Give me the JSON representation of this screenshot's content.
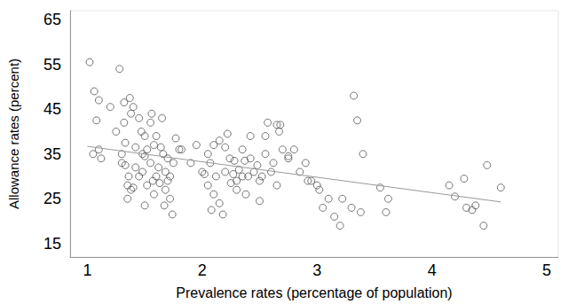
{
  "chart_data": {
    "type": "scatter",
    "x_label": "Prevalence rates (percentage of population)",
    "y_label": "Allowance rates (percent)",
    "xlim": [
      0.85,
      5.1
    ],
    "xticks": [
      1,
      2,
      3,
      4,
      5
    ],
    "ylim": [
      12,
      67
    ],
    "yticks": [
      15,
      25,
      35,
      45,
      55,
      65
    ],
    "grid": false,
    "series": [
      {
        "type": "scatter",
        "marker": "circle",
        "color": "#555555",
        "x": [
          1.02,
          1.06,
          1.05,
          1.08,
          1.1,
          1.1,
          1.12,
          1.2,
          1.25,
          1.28,
          1.3,
          1.3,
          1.32,
          1.32,
          1.33,
          1.33,
          1.35,
          1.35,
          1.36,
          1.37,
          1.38,
          1.38,
          1.4,
          1.4,
          1.42,
          1.42,
          1.45,
          1.45,
          1.47,
          1.48,
          1.48,
          1.5,
          1.5,
          1.5,
          1.52,
          1.52,
          1.55,
          1.55,
          1.56,
          1.57,
          1.58,
          1.58,
          1.6,
          1.6,
          1.62,
          1.63,
          1.64,
          1.65,
          1.66,
          1.67,
          1.68,
          1.68,
          1.7,
          1.7,
          1.72,
          1.72,
          1.74,
          1.75,
          1.77,
          1.8,
          1.82,
          1.9,
          1.95,
          2.0,
          2.02,
          2.05,
          2.05,
          2.07,
          2.08,
          2.1,
          2.1,
          2.12,
          2.15,
          2.15,
          2.18,
          2.2,
          2.2,
          2.22,
          2.24,
          2.25,
          2.27,
          2.28,
          2.3,
          2.3,
          2.32,
          2.35,
          2.35,
          2.37,
          2.38,
          2.4,
          2.42,
          2.42,
          2.45,
          2.48,
          2.5,
          2.5,
          2.52,
          2.55,
          2.55,
          2.57,
          2.6,
          2.62,
          2.65,
          2.65,
          2.67,
          2.68,
          2.7,
          2.75,
          2.75,
          2.8,
          2.85,
          2.9,
          2.92,
          2.95,
          3.0,
          3.02,
          3.05,
          3.1,
          3.15,
          3.2,
          3.22,
          3.3,
          3.32,
          3.35,
          3.38,
          3.4,
          3.55,
          3.6,
          3.62,
          4.15,
          4.2,
          4.28,
          4.3,
          4.35,
          4.38,
          4.45,
          4.48,
          4.6
        ],
        "values": [
          55.5,
          49,
          35,
          42.5,
          47,
          36,
          34,
          45.5,
          40,
          54,
          35,
          33,
          46.5,
          42,
          37.5,
          32.5,
          28,
          25,
          30,
          47.5,
          27,
          44,
          45.5,
          27.5,
          32,
          36.5,
          43,
          30,
          40,
          35,
          31,
          34.5,
          23.5,
          39,
          36,
          28,
          42,
          33,
          44,
          29,
          37,
          26,
          30,
          39,
          32,
          28.5,
          36.5,
          43,
          35,
          23.5,
          31,
          27,
          29,
          34,
          30,
          25,
          21.5,
          33,
          38.5,
          36,
          36,
          33,
          37,
          31,
          30.5,
          35,
          28,
          33,
          22.5,
          37,
          26,
          30,
          38,
          24,
          21.5,
          31,
          36.5,
          39.5,
          34,
          28.5,
          30.5,
          33.5,
          29,
          27,
          31.5,
          30,
          36,
          33.5,
          26,
          30,
          34,
          39,
          31,
          32.5,
          24.5,
          29,
          30,
          35,
          39,
          42,
          31,
          33,
          28,
          41.5,
          40,
          41.5,
          36,
          34,
          34.5,
          36,
          31,
          33,
          29,
          29,
          28,
          27,
          23,
          25,
          21,
          19,
          25,
          23,
          48,
          42.5,
          22,
          35,
          27.5,
          22,
          25,
          28,
          25.5,
          29.5,
          23,
          22.5,
          23.5,
          19,
          32.5,
          27.5
        ]
      },
      {
        "type": "line",
        "line_style": "solid",
        "color": "#999999",
        "x": [
          1,
          4.6
        ],
        "values": [
          36.7,
          24.3
        ]
      }
    ]
  }
}
